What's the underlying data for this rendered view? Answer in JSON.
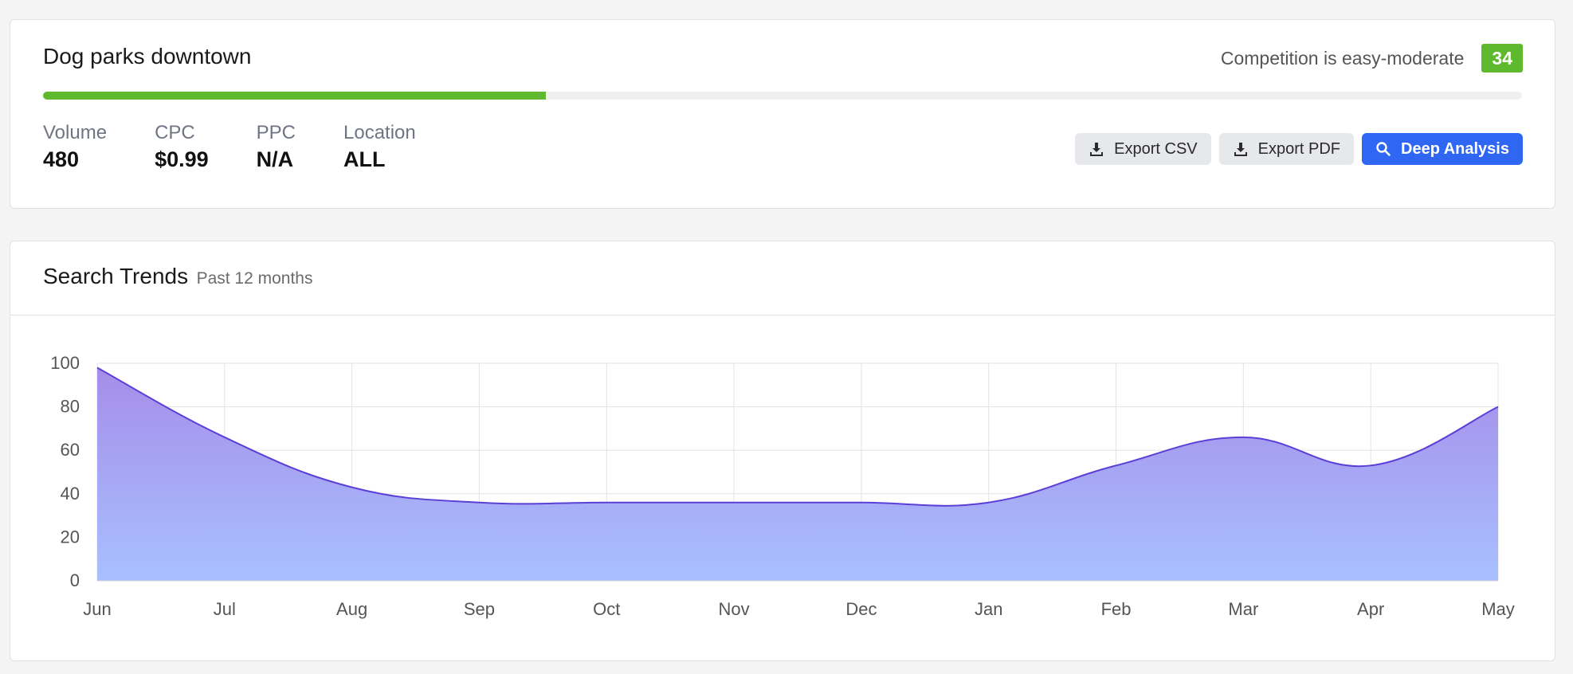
{
  "keyword": {
    "title": "Dog parks downtown",
    "competition_label": "Competition is easy-moderate",
    "difficulty_score": "34",
    "difficulty_progress_percent": 34,
    "accent_color": "#5fb92f",
    "metrics": [
      {
        "label": "Volume",
        "value": "480"
      },
      {
        "label": "CPC",
        "value": "$0.99"
      },
      {
        "label": "PPC",
        "value": "N/A"
      },
      {
        "label": "Location",
        "value": "ALL"
      }
    ],
    "buttons": {
      "export_csv": "Export CSV",
      "export_pdf": "Export PDF",
      "deep_analysis": "Deep Analysis"
    },
    "icons": {
      "export_csv": "download-icon",
      "export_pdf": "download-icon",
      "deep_analysis": "search-icon"
    },
    "primary_color": "#2f66f2"
  },
  "trends": {
    "title": "Search Trends",
    "subtitle": "Past 12 months"
  },
  "chart_data": {
    "type": "area",
    "categories": [
      "Jun",
      "Jul",
      "Aug",
      "Sep",
      "Oct",
      "Nov",
      "Dec",
      "Jan",
      "Feb",
      "Mar",
      "Apr",
      "May"
    ],
    "values": [
      98,
      66,
      43,
      36,
      36,
      36,
      36,
      36,
      53,
      66,
      53,
      80
    ],
    "ylim": [
      0,
      100
    ],
    "yticks": [
      0,
      20,
      40,
      60,
      80,
      100
    ],
    "grid": true,
    "line_color": "#5b3fd6",
    "fill_top_color": "#a58de9",
    "fill_bottom_color": "#a8c0ff"
  }
}
